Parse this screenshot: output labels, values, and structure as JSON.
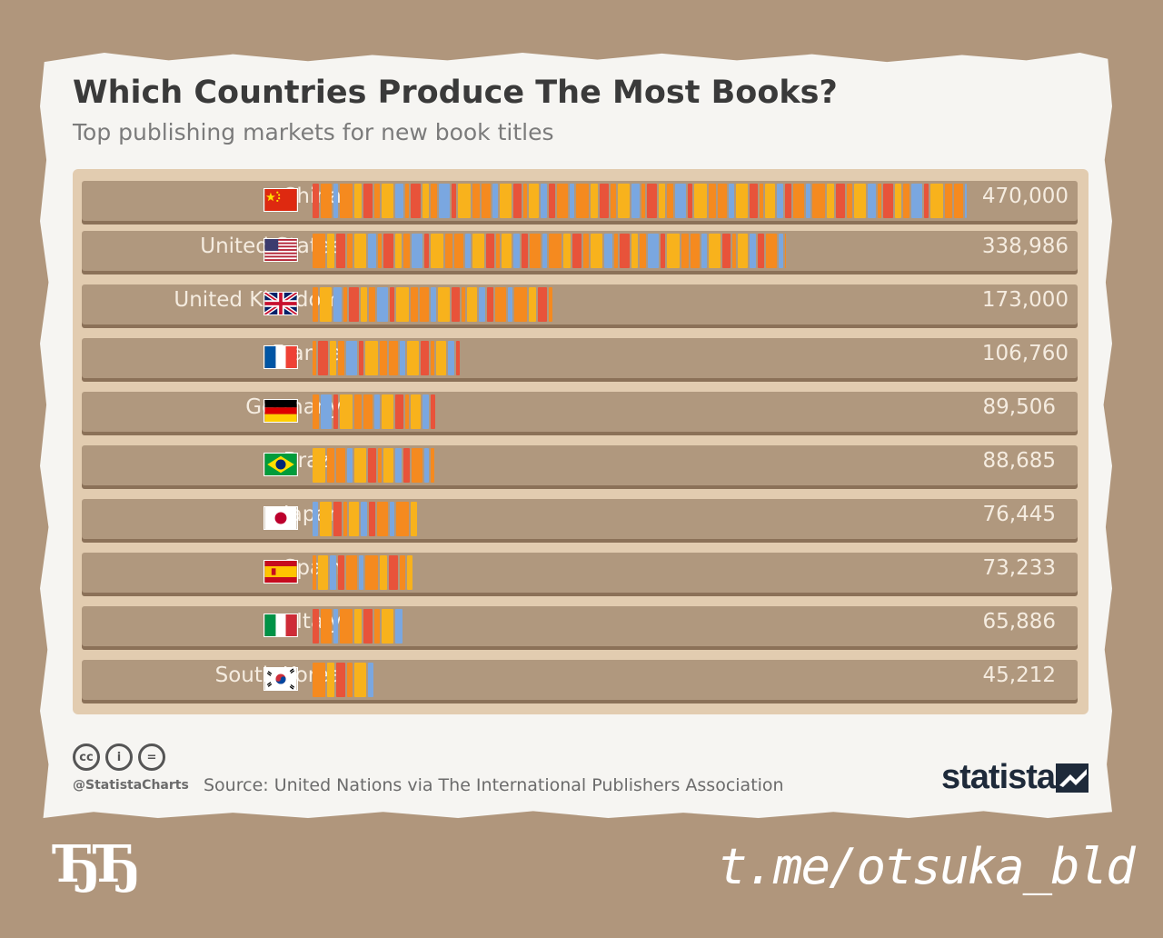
{
  "header": {
    "title": "Which Countries Produce The Most Books?",
    "subtitle": "Top publishing markets for new book titles"
  },
  "chart_data": {
    "type": "bar",
    "orientation": "horizontal",
    "categories": [
      "China",
      "United States",
      "United Kingdom",
      "France",
      "Germany",
      "Brazil",
      "Japan",
      "Spain",
      "Italy",
      "South Korea"
    ],
    "values": [
      470000,
      338986,
      173000,
      106760,
      89506,
      88685,
      76445,
      73233,
      65886,
      45212
    ],
    "value_labels": [
      "470,000",
      "338,986",
      "173,000",
      "106,760",
      "89,506",
      "88,685",
      "76,445",
      "73,233",
      "65,886",
      "45,212"
    ],
    "flags": [
      "china-flag",
      "usa-flag",
      "uk-flag",
      "france-flag",
      "germany-flag",
      "brazil-flag",
      "japan-flag",
      "spain-flag",
      "italy-flag",
      "south-korea-flag"
    ],
    "title": "Which Countries Produce The Most Books?",
    "colors": {
      "red": "#e8533a",
      "orange": "#f58a1f",
      "yellow": "#f8b21c",
      "blue": "#7aa7e0"
    },
    "xlim": [
      0,
      470000
    ]
  },
  "footer": {
    "handle": "@StatistaCharts",
    "source": "Source: United Nations via The International Publishers Association",
    "brand": "statista",
    "license_icons": [
      "cc-icon",
      "by-icon",
      "nd-icon"
    ],
    "license_glyphs": [
      "cc",
      "i",
      "="
    ]
  },
  "watermark": {
    "left": "ЂЂ",
    "right": "t.me/otsuka_bld"
  }
}
